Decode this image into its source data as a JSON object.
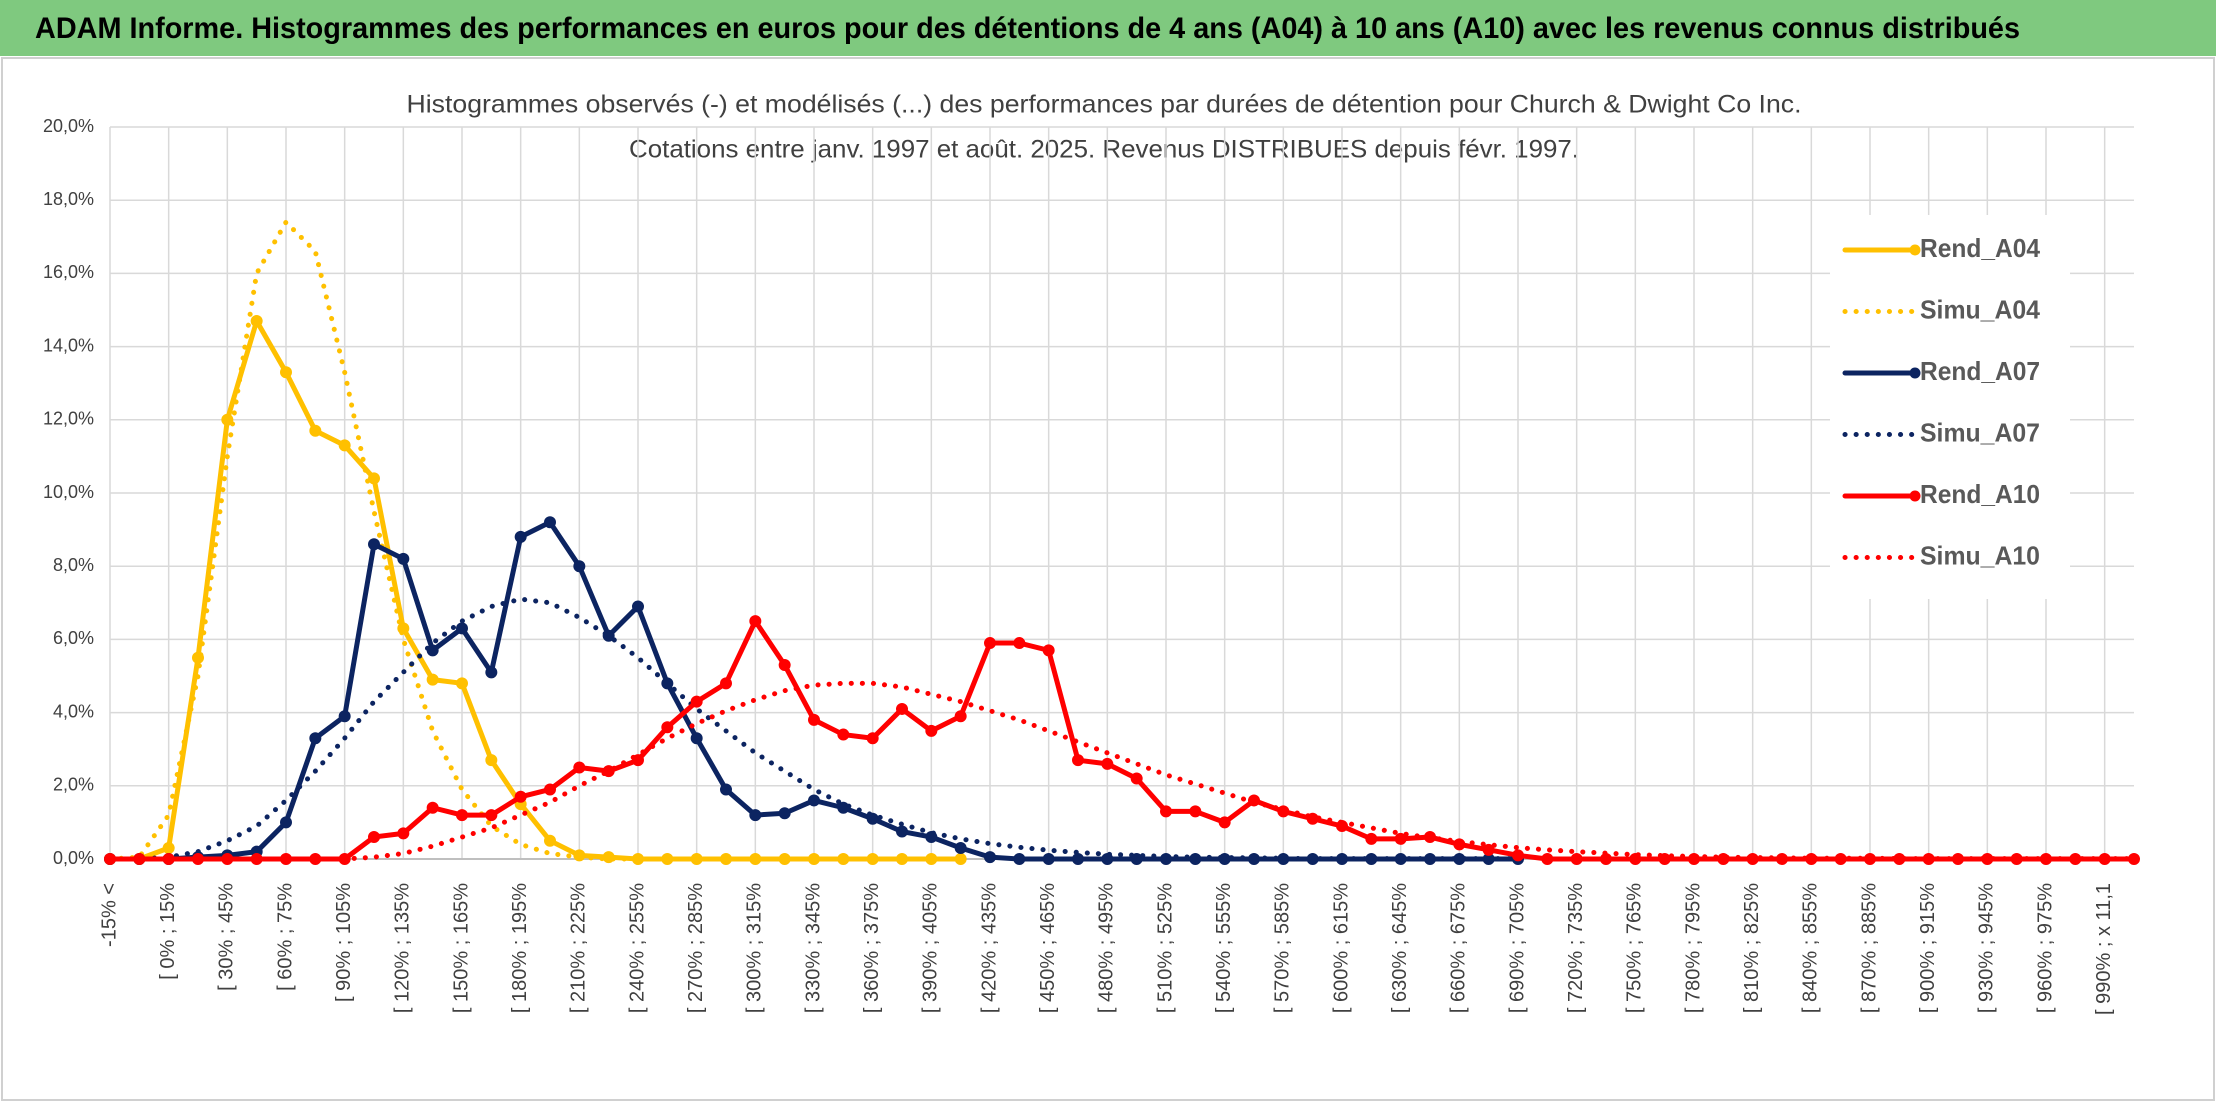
{
  "header": {
    "title": "ADAM Informe. Histogrammes des performances en euros pour des détentions de 4 ans (A04) à 10 ans (A10) avec les revenus connus distribués"
  },
  "chart_data": {
    "type": "line",
    "title": "Histogrammes observés (-) et modélisés (...) des performances par durées de détention pour Church & Dwight Co Inc.",
    "subtitle": "Cotations entre janv. 1997 et août. 2025. Revenus DISTRIBUES depuis févr. 1997.",
    "categories": [
      "-15% <",
      null,
      "[ 0% ; 15%",
      null,
      "[ 30% ; 45%",
      null,
      "[ 60% ; 75%",
      null,
      "[ 90% ; 105%",
      null,
      "[ 120% ; 135%",
      null,
      "[ 150% ; 165%",
      null,
      "[ 180% ; 195%",
      null,
      "[ 210% ; 225%",
      null,
      "[ 240% ; 255%",
      null,
      "[ 270% ; 285%",
      null,
      "[ 300% ; 315%",
      null,
      "[ 330% ; 345%",
      null,
      "[ 360% ; 375%",
      null,
      "[ 390% ; 405%",
      null,
      "[ 420% ; 435%",
      null,
      "[ 450% ; 465%",
      null,
      "[ 480% ; 495%",
      null,
      "[ 510% ; 525%",
      null,
      "[ 540% ; 555%",
      null,
      "[ 570% ; 585%",
      null,
      "[ 600% ; 615%",
      null,
      "[ 630% ; 645%",
      null,
      "[ 660% ; 675%",
      null,
      "[ 690% ; 705%",
      null,
      "[ 720% ; 735%",
      null,
      "[ 750% ; 765%",
      null,
      "[ 780% ; 795%",
      null,
      "[ 810% ; 825%",
      null,
      "[ 840% ; 855%",
      null,
      "[ 870% ; 885%",
      null,
      "[ 900% ; 915%",
      null,
      "[ 930% ; 945%",
      null,
      "[ 960% ; 975%",
      null,
      "[ 990% ; x 11,1",
      null
    ],
    "series": [
      {
        "name": "Rend_A04",
        "color": "#FFC000",
        "line_style": "solid",
        "markers": true,
        "values": [
          0,
          0,
          0.3,
          5.5,
          12.0,
          14.7,
          13.3,
          11.7,
          11.3,
          10.4,
          6.3,
          4.9,
          4.8,
          2.7,
          1.5,
          0.5,
          0.1,
          0.05,
          0,
          0,
          0,
          0,
          0,
          0,
          0,
          0,
          0,
          0,
          0,
          0,
          null,
          null,
          null,
          null,
          null,
          null,
          null,
          null,
          null,
          null,
          null,
          null,
          null,
          null,
          null,
          null,
          null,
          null,
          null,
          null,
          null,
          null,
          null,
          null,
          null,
          null,
          null,
          null,
          null,
          null,
          null,
          null,
          null,
          null,
          null,
          null,
          null,
          null,
          null,
          null
        ]
      },
      {
        "name": "Simu_A04",
        "color": "#FFC000",
        "line_style": "dotted",
        "markers": false,
        "values": [
          0,
          0.05,
          1.2,
          5.0,
          11.0,
          16.0,
          17.4,
          16.6,
          13.3,
          9.5,
          6.0,
          3.5,
          1.9,
          0.9,
          0.4,
          0.15,
          0.05,
          0,
          0,
          0,
          0,
          null,
          null,
          null,
          null,
          null,
          null,
          null,
          null,
          null,
          null,
          null,
          null,
          null,
          null,
          null,
          null,
          null,
          null,
          null,
          null,
          null,
          null,
          null,
          null,
          null,
          null,
          null,
          null,
          null,
          null,
          null,
          null,
          null,
          null,
          null,
          null,
          null,
          null,
          null,
          null,
          null,
          null,
          null,
          null,
          null,
          null,
          null,
          null,
          null
        ]
      },
      {
        "name": "Rend_A07",
        "color": "#0C2461",
        "line_style": "solid",
        "markers": true,
        "values": [
          0,
          0,
          0,
          0.05,
          0.1,
          0.2,
          1.0,
          3.3,
          3.9,
          8.6,
          8.2,
          5.7,
          6.3,
          5.1,
          8.8,
          9.2,
          8.0,
          6.1,
          6.9,
          4.8,
          3.3,
          1.9,
          1.2,
          1.25,
          1.6,
          1.4,
          1.1,
          0.75,
          0.6,
          0.3,
          0.05,
          0,
          0,
          0,
          0,
          0,
          0,
          0,
          0,
          0,
          0,
          0,
          0,
          0,
          0,
          0,
          0,
          0,
          0,
          null,
          null,
          null,
          null,
          null,
          null,
          null,
          null,
          null,
          null,
          null,
          null,
          null,
          null,
          null,
          null,
          null,
          null,
          null,
          null,
          null
        ]
      },
      {
        "name": "Simu_A07",
        "color": "#0C2461",
        "line_style": "dotted",
        "markers": false,
        "values": [
          0,
          0,
          0.05,
          0.2,
          0.5,
          0.9,
          1.6,
          2.4,
          3.3,
          4.3,
          5.1,
          5.9,
          6.5,
          6.9,
          7.1,
          7.0,
          6.6,
          6.1,
          5.5,
          4.8,
          4.1,
          3.5,
          2.9,
          2.4,
          1.9,
          1.5,
          1.2,
          0.95,
          0.72,
          0.55,
          0.42,
          0.32,
          0.24,
          0.18,
          0.13,
          0.1,
          0.07,
          0.05,
          0.04,
          0.03,
          0.02,
          0.01,
          0.01,
          0.01,
          0.01,
          0.01,
          0.01,
          0.01,
          0.01,
          null,
          null,
          null,
          null,
          null,
          null,
          null,
          null,
          null,
          null,
          null,
          null,
          null,
          null,
          null,
          null,
          null,
          null,
          null,
          null,
          null
        ]
      },
      {
        "name": "Rend_A10",
        "color": "#FF0000",
        "line_style": "solid",
        "markers": true,
        "values": [
          0,
          0,
          0,
          0,
          0,
          0,
          0,
          0,
          0,
          0.6,
          0.7,
          1.4,
          1.2,
          1.2,
          1.7,
          1.9,
          2.5,
          2.4,
          2.7,
          3.6,
          4.3,
          4.8,
          6.5,
          5.3,
          3.8,
          3.4,
          3.3,
          4.1,
          3.5,
          3.9,
          5.9,
          5.9,
          5.7,
          2.7,
          2.6,
          2.2,
          1.3,
          1.3,
          1.0,
          1.6,
          1.3,
          1.1,
          0.9,
          0.55,
          0.55,
          0.6,
          0.4,
          0.25,
          0.1,
          0,
          0,
          0,
          0,
          0,
          0,
          0,
          0,
          0,
          0,
          0,
          0,
          0,
          0,
          0,
          0,
          0,
          0,
          0,
          0,
          0
        ]
      },
      {
        "name": "Simu_A10",
        "color": "#FF0000",
        "line_style": "dotted",
        "markers": false,
        "values": [
          0,
          0,
          0,
          0,
          0,
          0,
          0,
          0,
          0,
          0.05,
          0.15,
          0.35,
          0.6,
          0.85,
          1.2,
          1.55,
          2.0,
          2.4,
          2.85,
          3.3,
          3.7,
          4.05,
          4.35,
          4.6,
          4.75,
          4.8,
          4.8,
          4.7,
          4.5,
          4.3,
          4.05,
          3.8,
          3.5,
          3.2,
          2.9,
          2.6,
          2.3,
          2.05,
          1.8,
          1.55,
          1.35,
          1.15,
          1.0,
          0.85,
          0.7,
          0.58,
          0.48,
          0.39,
          0.31,
          0.25,
          0.2,
          0.16,
          0.12,
          0.09,
          0.07,
          0.05,
          0.04,
          0.03,
          0.02,
          0.02,
          0.02,
          0.01,
          0.01,
          0.01,
          0.01,
          0.01,
          0.01,
          0.01,
          0.01,
          0.01
        ]
      }
    ],
    "ylim": [
      0,
      20
    ],
    "yticks": [
      {
        "value": 0,
        "label": "0,0%"
      },
      {
        "value": 2,
        "label": "2,0%"
      },
      {
        "value": 4,
        "label": "4,0%"
      },
      {
        "value": 6,
        "label": "6,0%"
      },
      {
        "value": 8,
        "label": "8,0%"
      },
      {
        "value": 10,
        "label": "10,0%"
      },
      {
        "value": 12,
        "label": "12,0%"
      },
      {
        "value": 14,
        "label": "14,0%"
      },
      {
        "value": 16,
        "label": "16,0%"
      },
      {
        "value": 18,
        "label": "18,0%"
      },
      {
        "value": 20,
        "label": "20,0%"
      }
    ],
    "grid": true,
    "legend": "right"
  }
}
